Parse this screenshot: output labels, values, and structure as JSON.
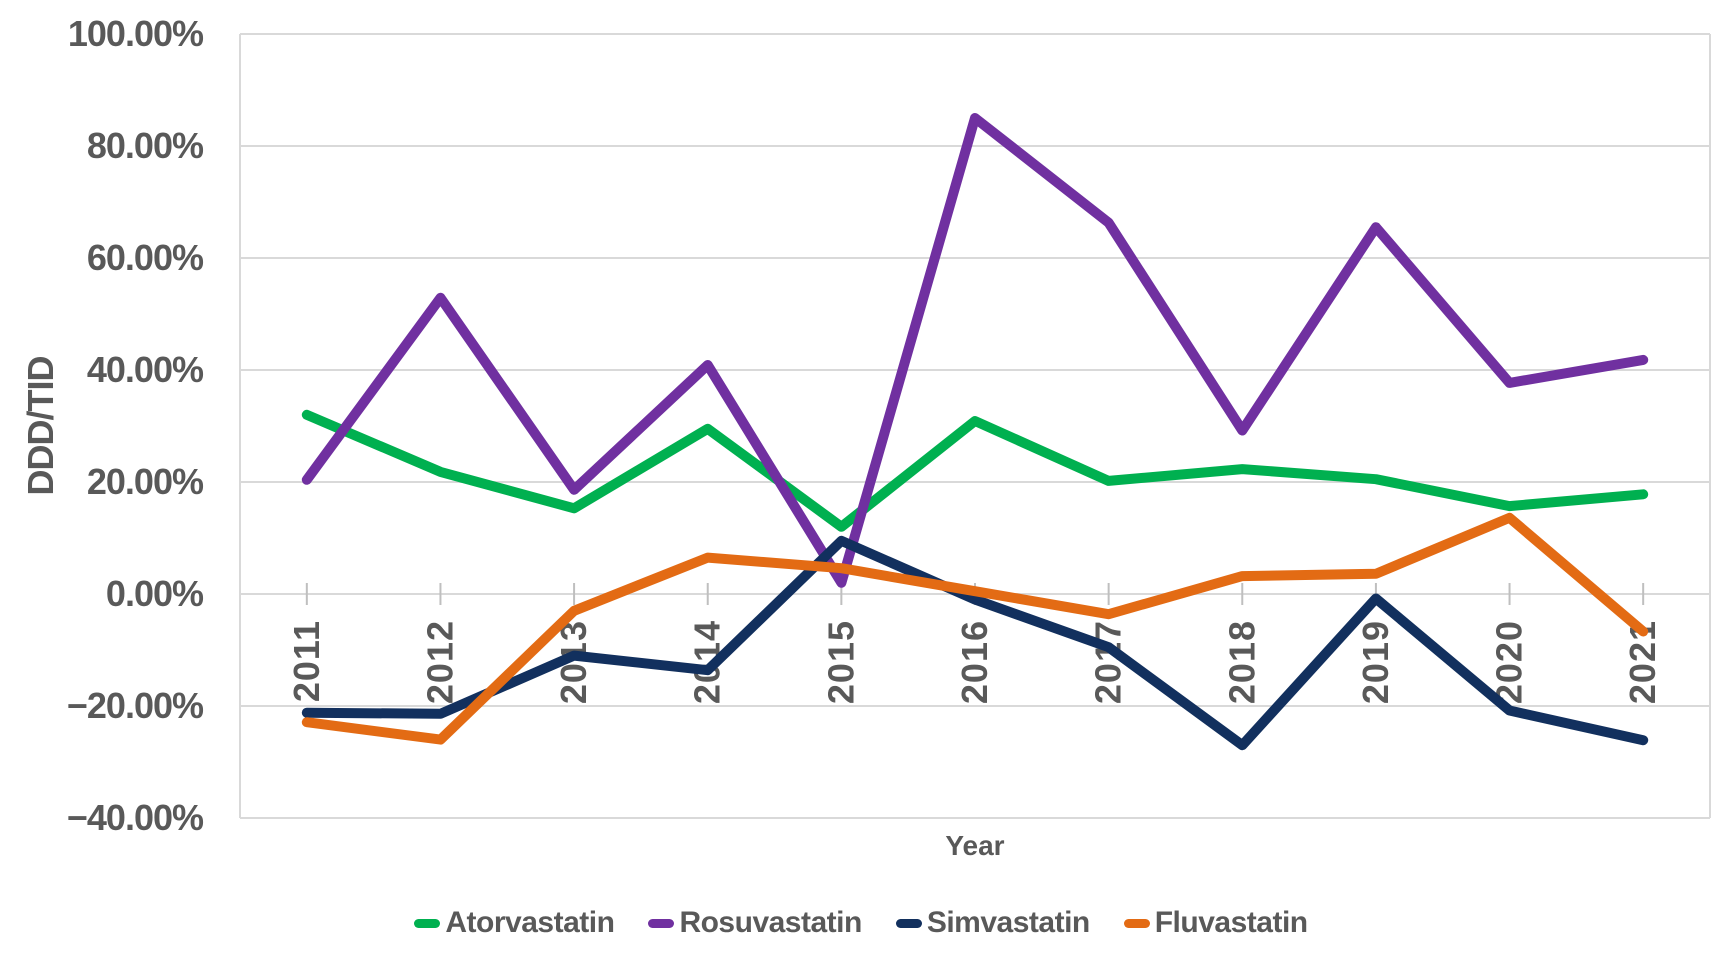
{
  "chart_data": {
    "type": "line",
    "title": "",
    "xlabel": "Year",
    "ylabel": "DDD/TID",
    "x": [
      "2011",
      "2012",
      "2013",
      "2014",
      "2015",
      "2016",
      "2017",
      "2018",
      "2019",
      "2020",
      "2021"
    ],
    "series": [
      {
        "name": "Atorvastatin",
        "color": "#00B050",
        "values": [
          32.0,
          21.8,
          15.3,
          29.5,
          12.0,
          30.9,
          20.2,
          22.3,
          20.5,
          15.7,
          17.8
        ]
      },
      {
        "name": "Rosuvastatin",
        "color": "#7030A0",
        "values": [
          20.4,
          52.9,
          18.6,
          40.9,
          2.0,
          85.0,
          66.3,
          29.2,
          65.5,
          37.7,
          41.8
        ]
      },
      {
        "name": "Simvastatin",
        "color": "#12305E",
        "values": [
          -21.2,
          -21.4,
          -11.0,
          -13.6,
          9.5,
          -1.0,
          -9.5,
          -27.0,
          -0.8,
          -20.8,
          -26.1
        ]
      },
      {
        "name": "Fluvastatin",
        "color": "#E36B14",
        "values": [
          -22.9,
          -26.0,
          -3.0,
          6.5,
          4.6,
          0.5,
          -3.6,
          3.2,
          3.6,
          13.6,
          -6.7
        ]
      }
    ],
    "ylim": [
      -40,
      100
    ],
    "ytick_step": 20,
    "y_tick_labels": [
      "100.00%",
      "80.00%",
      "60.00%",
      "40.00%",
      "20.00%",
      "0.00%",
      "−20.00%",
      "−40.00%"
    ],
    "grid": true,
    "legend_position": "bottom",
    "colors": {
      "text": "#595959",
      "gridline": "#D9D9D9",
      "tick": "#BFBFBF",
      "background": "#FFFFFF"
    }
  }
}
